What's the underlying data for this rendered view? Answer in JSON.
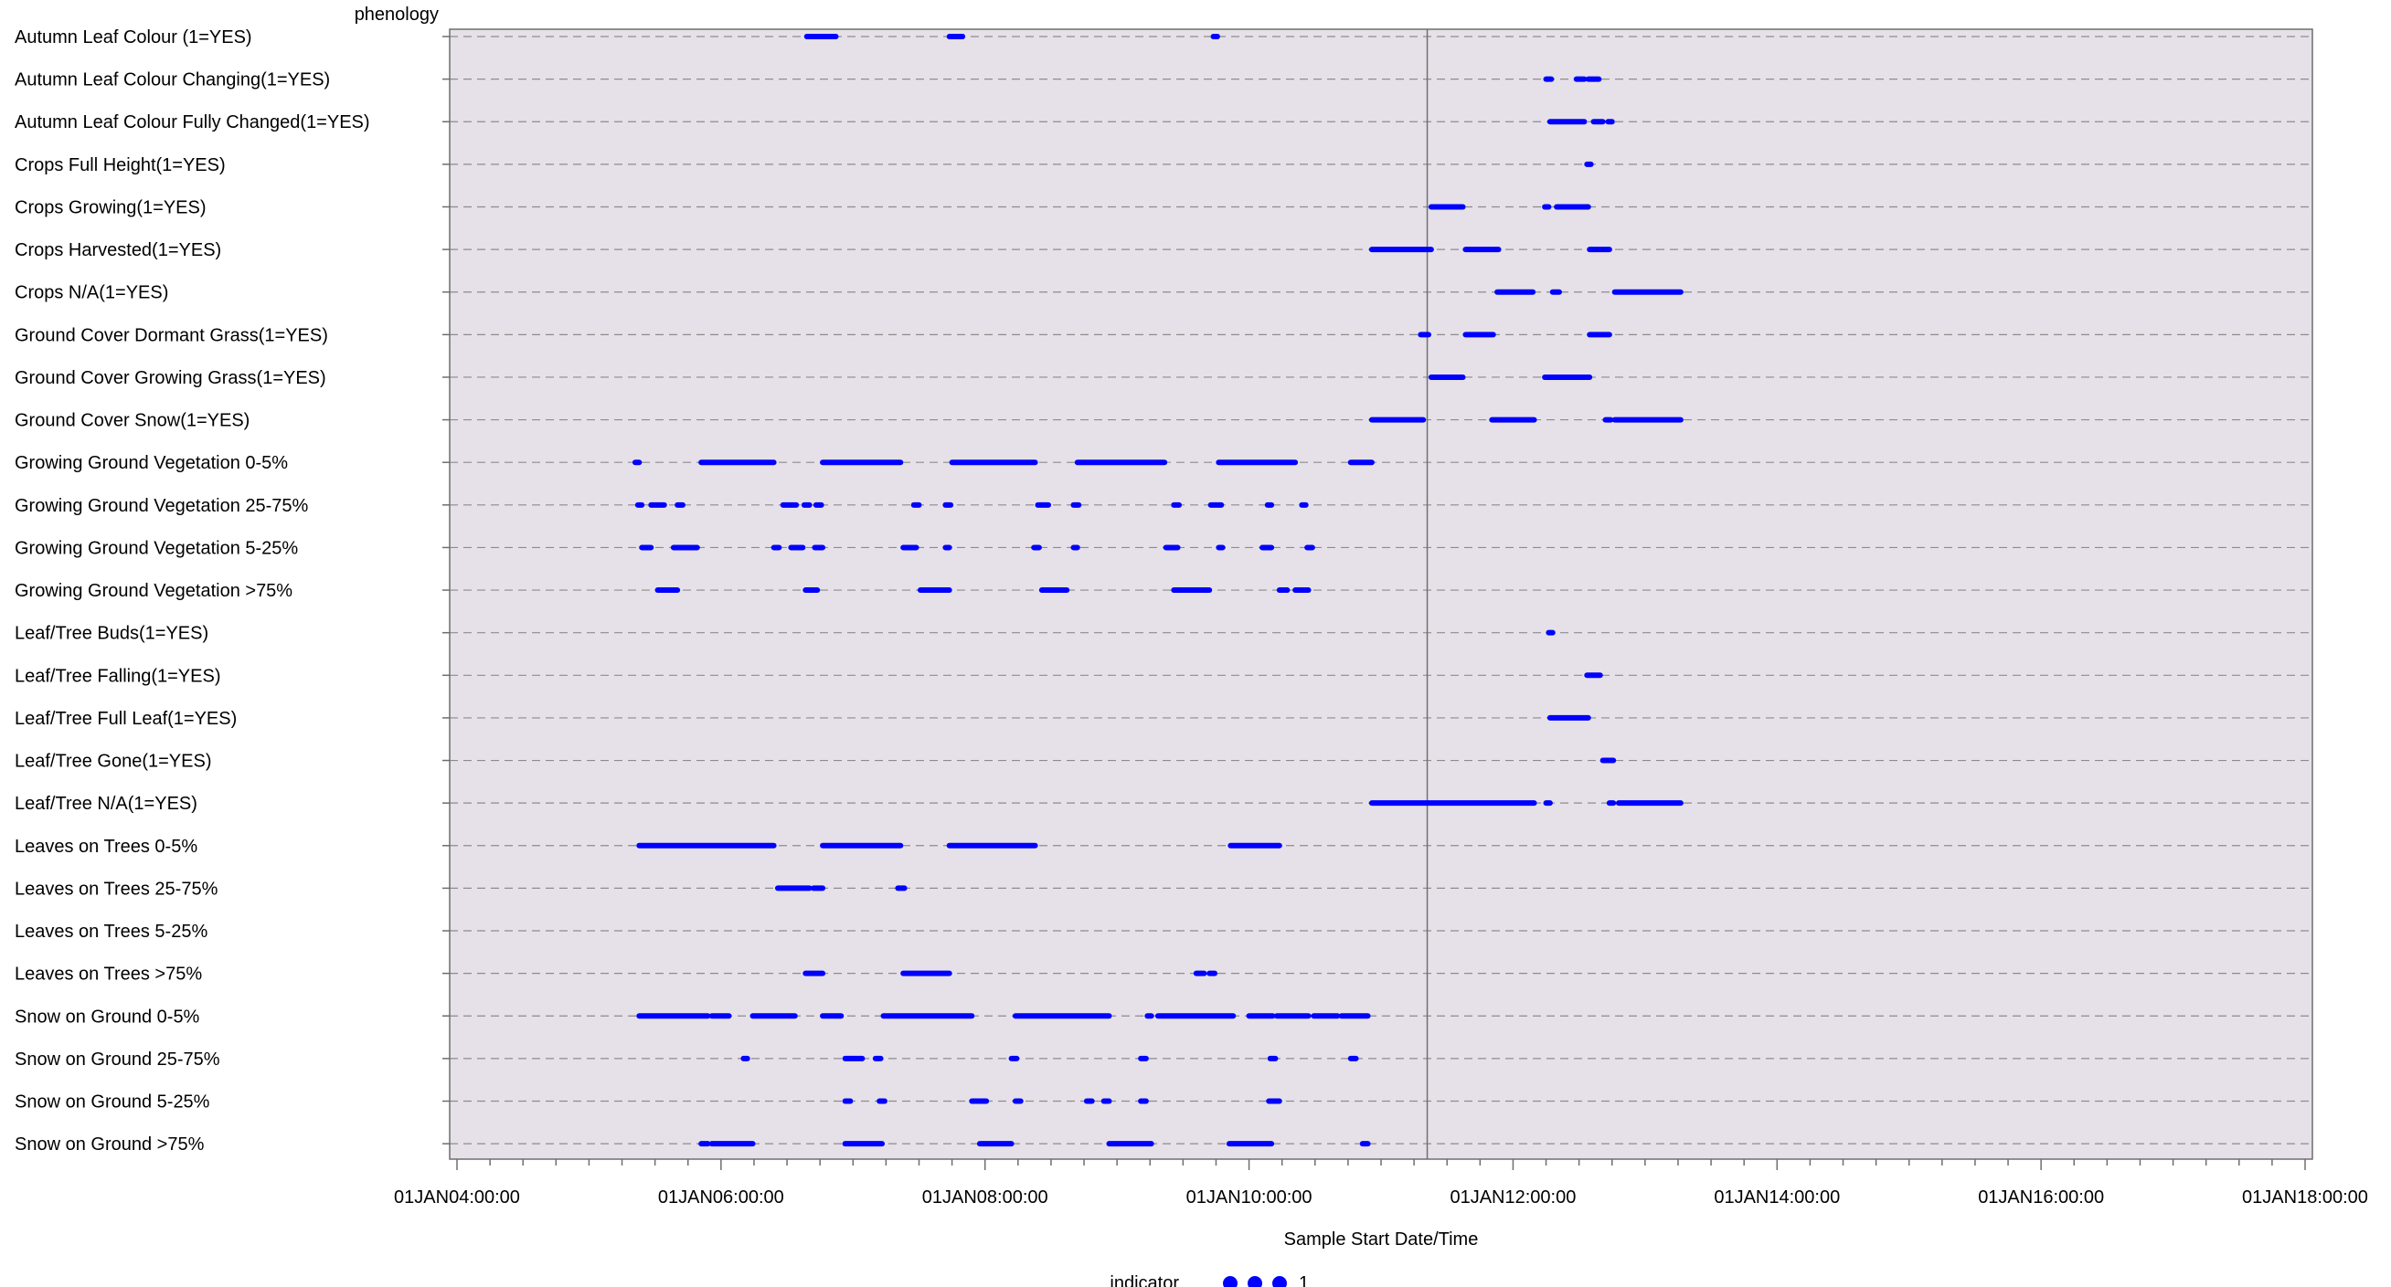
{
  "chart_data": {
    "type": "scatter",
    "title": "",
    "y_axis_title": "phenology",
    "xlabel": "Sample Start Date/Time",
    "x_axis": {
      "min_hours": 4,
      "max_hours": 18,
      "major_ticks": [
        4,
        6,
        8,
        10,
        12,
        14,
        16,
        18
      ],
      "minor_step_hours": 0.25,
      "tick_labels": [
        "01JAN04:00:00",
        "01JAN06:00:00",
        "01JAN08:00:00",
        "01JAN10:00:00",
        "01JAN12:00:00",
        "01JAN14:00:00",
        "01JAN16:00:00",
        "01JAN18:00:00"
      ]
    },
    "reference_line_hours": 11.35,
    "grid": "horizontal-dashed",
    "marker_color": "#0000ff",
    "plot_background": "#e6e1e8",
    "legend": {
      "title": "indicator",
      "entries": [
        "1"
      ],
      "placement": "bottom-center"
    },
    "categories": [
      "Autumn Leaf Colour (1=YES)",
      "Autumn Leaf Colour Changing(1=YES)",
      "Autumn Leaf Colour Fully Changed(1=YES)",
      "Crops Full Height(1=YES)",
      "Crops Growing(1=YES)",
      "Crops Harvested(1=YES)",
      "Crops N/A(1=YES)",
      "Ground Cover Dormant Grass(1=YES)",
      "Ground Cover Growing Grass(1=YES)",
      "Ground Cover Snow(1=YES)",
      "Growing Ground Vegetation 0-5%",
      "Growing Ground Vegetation 25-75%",
      "Growing Ground Vegetation 5-25%",
      "Growing Ground Vegetation >75%",
      "Leaf/Tree Buds(1=YES)",
      "Leaf/Tree Falling(1=YES)",
      "Leaf/Tree Full Leaf(1=YES)",
      "Leaf/Tree Gone(1=YES)",
      "Leaf/Tree N/A(1=YES)",
      "Leaves on Trees 0-5%",
      "Leaves on Trees 25-75%",
      "Leaves on Trees 5-25%",
      "Leaves on Trees >75%",
      "Snow on Ground 0-5%",
      "Snow on Ground 25-75%",
      "Snow on Ground 5-25%",
      "Snow on Ground >75%"
    ],
    "series": [
      {
        "category": "Autumn Leaf Colour (1=YES)",
        "segments": [
          [
            6.65,
            6.87
          ],
          [
            7.73,
            7.83
          ],
          [
            9.73,
            9.76
          ]
        ]
      },
      {
        "category": "Autumn Leaf Colour Changing(1=YES)",
        "segments": [
          [
            12.25,
            12.29
          ],
          [
            12.48,
            12.54
          ],
          [
            12.57,
            12.65
          ]
        ]
      },
      {
        "category": "Autumn Leaf Colour Fully Changed(1=YES)",
        "segments": [
          [
            12.28,
            12.54
          ],
          [
            12.61,
            12.68
          ],
          [
            12.72,
            12.75
          ]
        ]
      },
      {
        "category": "Crops Full Height(1=YES)",
        "segments": [
          [
            12.56,
            12.59
          ]
        ]
      },
      {
        "category": "Crops Growing(1=YES)",
        "segments": [
          [
            11.38,
            11.62
          ],
          [
            12.24,
            12.27
          ],
          [
            12.33,
            12.57
          ]
        ]
      },
      {
        "category": "Crops Harvested(1=YES)",
        "segments": [
          [
            10.93,
            11.38
          ],
          [
            11.64,
            11.89
          ],
          [
            12.58,
            12.73
          ]
        ]
      },
      {
        "category": "Crops N/A(1=YES)",
        "segments": [
          [
            11.88,
            12.15
          ],
          [
            12.3,
            12.35
          ],
          [
            12.77,
            13.27
          ]
        ]
      },
      {
        "category": "Ground Cover Dormant Grass(1=YES)",
        "segments": [
          [
            11.3,
            11.36
          ],
          [
            11.64,
            11.85
          ],
          [
            12.58,
            12.73
          ]
        ]
      },
      {
        "category": "Ground Cover Growing Grass(1=YES)",
        "segments": [
          [
            11.38,
            11.62
          ],
          [
            12.24,
            12.58
          ]
        ]
      },
      {
        "category": "Ground Cover Snow(1=YES)",
        "segments": [
          [
            10.93,
            11.32
          ],
          [
            11.84,
            12.16
          ],
          [
            12.7,
            12.74
          ],
          [
            12.77,
            13.27
          ]
        ]
      },
      {
        "category": "Growing Ground Vegetation 0-5%",
        "segments": [
          [
            5.35,
            5.38
          ],
          [
            5.85,
            6.4
          ],
          [
            6.77,
            7.36
          ],
          [
            7.75,
            8.38
          ],
          [
            8.7,
            9.36
          ],
          [
            9.77,
            10.35
          ],
          [
            10.77,
            10.93
          ]
        ]
      },
      {
        "category": "Growing Ground Vegetation 25-75%",
        "segments": [
          [
            5.37,
            5.4
          ],
          [
            5.47,
            5.57
          ],
          [
            5.67,
            5.71
          ],
          [
            6.47,
            6.57
          ],
          [
            6.63,
            6.67
          ],
          [
            6.72,
            6.76
          ],
          [
            7.46,
            7.5
          ],
          [
            7.7,
            7.74
          ],
          [
            8.4,
            8.48
          ],
          [
            8.67,
            8.71
          ],
          [
            9.43,
            9.47
          ],
          [
            9.71,
            9.79
          ],
          [
            10.14,
            10.17
          ],
          [
            10.4,
            10.43
          ]
        ]
      },
      {
        "category": "Growing Ground Vegetation 5-25%",
        "segments": [
          [
            5.4,
            5.47
          ],
          [
            5.64,
            5.82
          ],
          [
            6.4,
            6.44
          ],
          [
            6.53,
            6.62
          ],
          [
            6.71,
            6.77
          ],
          [
            7.38,
            7.48
          ],
          [
            7.7,
            7.73
          ],
          [
            8.37,
            8.41
          ],
          [
            8.67,
            8.7
          ],
          [
            9.37,
            9.46
          ],
          [
            9.77,
            9.8
          ],
          [
            10.1,
            10.17
          ],
          [
            10.44,
            10.48
          ]
        ]
      },
      {
        "category": "Growing Ground Vegetation >75%",
        "segments": [
          [
            5.52,
            5.67
          ],
          [
            6.64,
            6.73
          ],
          [
            7.51,
            7.73
          ],
          [
            8.43,
            8.62
          ],
          [
            9.43,
            9.7
          ],
          [
            10.23,
            10.29
          ],
          [
            10.35,
            10.45
          ]
        ]
      },
      {
        "category": "Leaf/Tree Buds(1=YES)",
        "segments": [
          [
            12.27,
            12.3
          ]
        ]
      },
      {
        "category": "Leaf/Tree Falling(1=YES)",
        "segments": [
          [
            12.56,
            12.66
          ]
        ]
      },
      {
        "category": "Leaf/Tree Full Leaf(1=YES)",
        "segments": [
          [
            12.28,
            12.57
          ]
        ]
      },
      {
        "category": "Leaf/Tree Gone(1=YES)",
        "segments": [
          [
            12.68,
            12.76
          ]
        ]
      },
      {
        "category": "Leaf/Tree N/A(1=YES)",
        "segments": [
          [
            10.93,
            12.16
          ],
          [
            12.25,
            12.28
          ],
          [
            12.73,
            12.76
          ],
          [
            12.8,
            13.27
          ]
        ]
      },
      {
        "category": "Leaves on Trees 0-5%",
        "segments": [
          [
            5.38,
            6.4
          ],
          [
            6.77,
            7.36
          ],
          [
            7.73,
            8.38
          ],
          [
            9.86,
            10.23
          ]
        ]
      },
      {
        "category": "Leaves on Trees 25-75%",
        "segments": [
          [
            6.43,
            6.67
          ],
          [
            6.7,
            6.77
          ],
          [
            7.34,
            7.39
          ]
        ]
      },
      {
        "category": "Leaves on Trees 5-25%",
        "segments": []
      },
      {
        "category": "Leaves on Trees >75%",
        "segments": [
          [
            6.64,
            6.77
          ],
          [
            7.38,
            7.73
          ],
          [
            9.6,
            9.66
          ],
          [
            9.7,
            9.74
          ]
        ]
      },
      {
        "category": "Snow on Ground 0-5%",
        "segments": [
          [
            5.38,
            5.9
          ],
          [
            5.93,
            6.06
          ],
          [
            6.24,
            6.56
          ],
          [
            6.77,
            6.91
          ],
          [
            7.23,
            7.9
          ],
          [
            8.23,
            8.94
          ],
          [
            9.23,
            9.26
          ],
          [
            9.31,
            9.88
          ],
          [
            10.0,
            10.18
          ],
          [
            10.21,
            10.45
          ],
          [
            10.49,
            10.67
          ],
          [
            10.7,
            10.9
          ]
        ]
      },
      {
        "category": "Snow on Ground 25-75%",
        "segments": [
          [
            6.17,
            6.2
          ],
          [
            6.94,
            7.07
          ],
          [
            7.17,
            7.21
          ],
          [
            8.2,
            8.24
          ],
          [
            9.18,
            9.22
          ],
          [
            10.16,
            10.2
          ],
          [
            10.77,
            10.81
          ]
        ]
      },
      {
        "category": "Snow on Ground 5-25%",
        "segments": [
          [
            6.94,
            6.98
          ],
          [
            7.2,
            7.24
          ],
          [
            7.9,
            8.01
          ],
          [
            8.23,
            8.27
          ],
          [
            8.77,
            8.81
          ],
          [
            8.9,
            8.94
          ],
          [
            9.18,
            9.22
          ],
          [
            10.15,
            10.23
          ]
        ]
      },
      {
        "category": "Snow on Ground >75%",
        "segments": [
          [
            5.85,
            5.9
          ],
          [
            5.93,
            6.24
          ],
          [
            6.94,
            7.22
          ],
          [
            7.96,
            8.2
          ],
          [
            8.94,
            9.26
          ],
          [
            9.85,
            10.17
          ],
          [
            10.86,
            10.9
          ]
        ]
      }
    ]
  }
}
